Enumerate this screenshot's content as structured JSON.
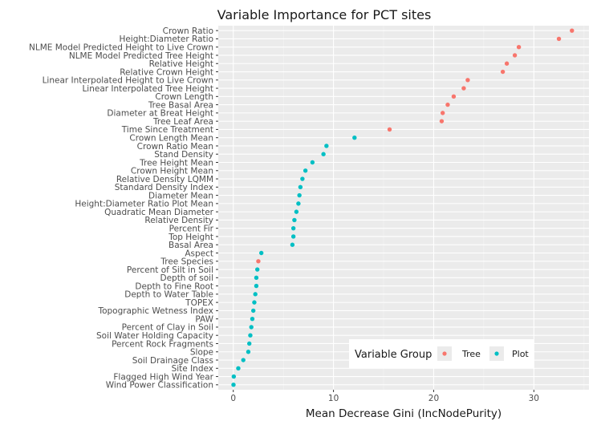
{
  "chart_data": {
    "type": "scatter",
    "orientation": "horizontal",
    "title": "Variable Importance for PCT sites",
    "xlabel": "Mean Decrease Gini (IncNodePurity)",
    "ylabel": "",
    "xlim": [
      -1.5,
      35.5
    ],
    "x_ticks": [
      0,
      10,
      20,
      30
    ],
    "x_tick_labels": [
      "0",
      "10",
      "20",
      "30"
    ],
    "grid": true,
    "legend": {
      "title": "Variable Group",
      "placement": "bottom-right, inside plot",
      "entries": [
        {
          "name": "Tree",
          "color": "#F8766D"
        },
        {
          "name": "Plot",
          "color": "#00BFC4"
        }
      ]
    },
    "points": [
      {
        "label": "Crown Ratio",
        "value": 33.8,
        "group": "Tree"
      },
      {
        "label": "Height:Diameter Ratio",
        "value": 32.5,
        "group": "Tree"
      },
      {
        "label": "NLME Model Predicted Height to Live Crown",
        "value": 28.5,
        "group": "Tree"
      },
      {
        "label": "NLME Model Predicted Tree Height",
        "value": 28.1,
        "group": "Tree"
      },
      {
        "label": "Relative Height",
        "value": 27.3,
        "group": "Tree"
      },
      {
        "label": "Relative Crown Height",
        "value": 26.9,
        "group": "Tree"
      },
      {
        "label": "Linear Interpolated Height to Live Crown",
        "value": 23.4,
        "group": "Tree"
      },
      {
        "label": "Linear Interpolated Tree Height",
        "value": 23.0,
        "group": "Tree"
      },
      {
        "label": "Crown Length",
        "value": 22.0,
        "group": "Tree"
      },
      {
        "label": "Tree Basal Area",
        "value": 21.4,
        "group": "Tree"
      },
      {
        "label": "Diameter at Breat Height",
        "value": 20.9,
        "group": "Tree"
      },
      {
        "label": "Tree Leaf Area",
        "value": 20.8,
        "group": "Tree"
      },
      {
        "label": "Time Since Treatment",
        "value": 15.6,
        "group": "Tree"
      },
      {
        "label": "Crown Length Mean",
        "value": 12.1,
        "group": "Plot"
      },
      {
        "label": "Crown Ratio Mean",
        "value": 9.3,
        "group": "Plot"
      },
      {
        "label": "Stand Density",
        "value": 9.0,
        "group": "Plot"
      },
      {
        "label": "Tree Height Mean",
        "value": 7.9,
        "group": "Plot"
      },
      {
        "label": "Crown Height Mean",
        "value": 7.2,
        "group": "Plot"
      },
      {
        "label": "Relative Density LQMM",
        "value": 6.9,
        "group": "Plot"
      },
      {
        "label": "Standard Density Index",
        "value": 6.7,
        "group": "Plot"
      },
      {
        "label": "Diameter Mean",
        "value": 6.6,
        "group": "Plot"
      },
      {
        "label": "Height:Diameter Ratio Plot Mean",
        "value": 6.5,
        "group": "Plot"
      },
      {
        "label": "Quadratic Mean Diameter",
        "value": 6.3,
        "group": "Plot"
      },
      {
        "label": "Relative Density",
        "value": 6.1,
        "group": "Plot"
      },
      {
        "label": "Percent Fir",
        "value": 6.0,
        "group": "Plot"
      },
      {
        "label": "Top Height",
        "value": 6.0,
        "group": "Plot"
      },
      {
        "label": "Basal Area",
        "value": 5.9,
        "group": "Plot"
      },
      {
        "label": "Aspect",
        "value": 2.8,
        "group": "Plot"
      },
      {
        "label": "Tree Species",
        "value": 2.5,
        "group": "Tree"
      },
      {
        "label": "Percent of Silt in Soil",
        "value": 2.4,
        "group": "Plot"
      },
      {
        "label": "Depth of soil",
        "value": 2.3,
        "group": "Plot"
      },
      {
        "label": "Depth to Fine Root",
        "value": 2.3,
        "group": "Plot"
      },
      {
        "label": "Depth to Water Table",
        "value": 2.2,
        "group": "Plot"
      },
      {
        "label": "TOPEX",
        "value": 2.1,
        "group": "Plot"
      },
      {
        "label": "Topographic Wetness Index",
        "value": 2.0,
        "group": "Plot"
      },
      {
        "label": "PAW",
        "value": 1.9,
        "group": "Plot"
      },
      {
        "label": "Percent of Clay in Soil",
        "value": 1.8,
        "group": "Plot"
      },
      {
        "label": "Soil Water Holding Capacity",
        "value": 1.7,
        "group": "Plot"
      },
      {
        "label": "Percent Rock Fragments",
        "value": 1.6,
        "group": "Plot"
      },
      {
        "label": "Slope",
        "value": 1.5,
        "group": "Plot"
      },
      {
        "label": "Soil Drainage Class",
        "value": 1.0,
        "group": "Plot"
      },
      {
        "label": "Site Index",
        "value": 0.5,
        "group": "Plot"
      },
      {
        "label": "Flagged High Wind Year",
        "value": 0.05,
        "group": "Plot"
      },
      {
        "label": "Wind Power Classification",
        "value": 0.02,
        "group": "Plot"
      }
    ]
  }
}
